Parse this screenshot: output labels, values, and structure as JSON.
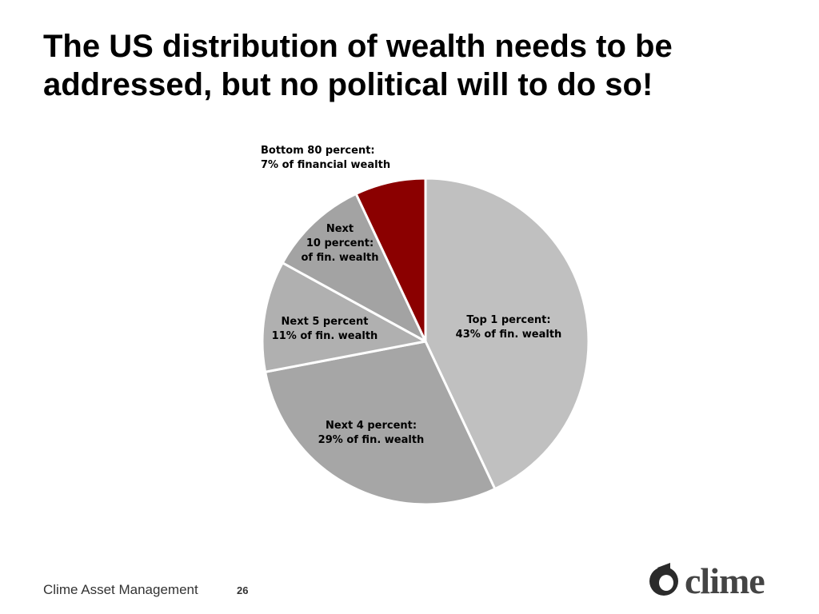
{
  "slide": {
    "title_line1": "The US distribution of wealth needs to be",
    "title_line2": "addressed, but no political will to do so!",
    "footer_text": "Clime Asset Management",
    "page_number": "26",
    "logo_text": "clime"
  },
  "chart_data": {
    "type": "pie",
    "title": "",
    "start_angle_deg": 0,
    "direction": "clockwise",
    "slices": [
      {
        "name": "Top 1 percent",
        "value": 43,
        "color": "#c0c0c0",
        "label_lines": [
          "Top 1 percent:",
          "43% of fin. wealth"
        ]
      },
      {
        "name": "Next 4 percent",
        "value": 29,
        "color": "#a6a6a6",
        "label_lines": [
          "Next 4 percent:",
          "29% of fin. wealth"
        ]
      },
      {
        "name": "Next 5 percent",
        "value": 11,
        "color": "#b0b0b0",
        "label_lines": [
          "Next 5 percent",
          "11% of fin. wealth"
        ]
      },
      {
        "name": "Next 10 percent",
        "value": 10,
        "color": "#a3a3a3",
        "label_lines": [
          "Next",
          "10 percent:",
          "of fin. wealth"
        ]
      },
      {
        "name": "Bottom 80 percent",
        "value": 7,
        "color": "#8b0000",
        "label_lines": [
          "Bottom 80 percent:",
          "7% of financial wealth"
        ]
      }
    ],
    "colors": {
      "slice_border": "#ffffff",
      "label_text": "#000000"
    }
  }
}
